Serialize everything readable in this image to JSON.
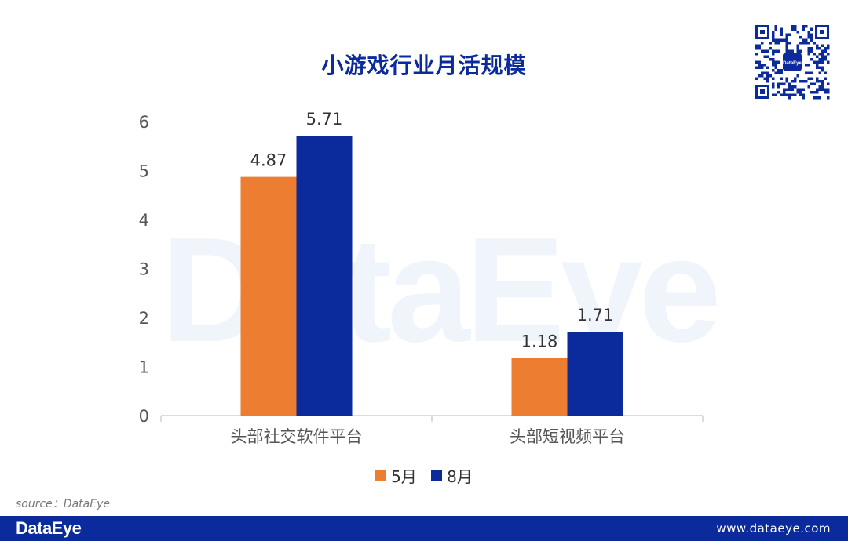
{
  "title": "小游戏行业月活规模",
  "watermark": "DataEye",
  "qr_badge": "DataEye",
  "source": "source：DataEye",
  "footer": {
    "brand": "DataEye",
    "url": "www.dataeye.com"
  },
  "colors": {
    "series_5": "#ed7d31",
    "series_8": "#0b2a9c",
    "title": "#0b2a9c",
    "footer_bg": "#0b2a9c"
  },
  "chart_data": {
    "type": "bar",
    "categories": [
      "头部社交软件平台",
      "头部短视频平台"
    ],
    "series": [
      {
        "name": "5月",
        "values": [
          4.87,
          1.18
        ],
        "color": "#ed7d31"
      },
      {
        "name": "8月",
        "values": [
          5.71,
          1.71
        ],
        "color": "#0b2a9c"
      }
    ],
    "ylim": [
      0,
      6
    ],
    "yticks": [
      "0",
      "1",
      "2",
      "3",
      "4",
      "5",
      "6"
    ],
    "data_labels": [
      [
        "4.87",
        "1.18"
      ],
      [
        "5.71",
        "1.71"
      ]
    ],
    "legend": {
      "position": "bottom",
      "entries": [
        "5月",
        "8月"
      ]
    },
    "grid": false
  }
}
